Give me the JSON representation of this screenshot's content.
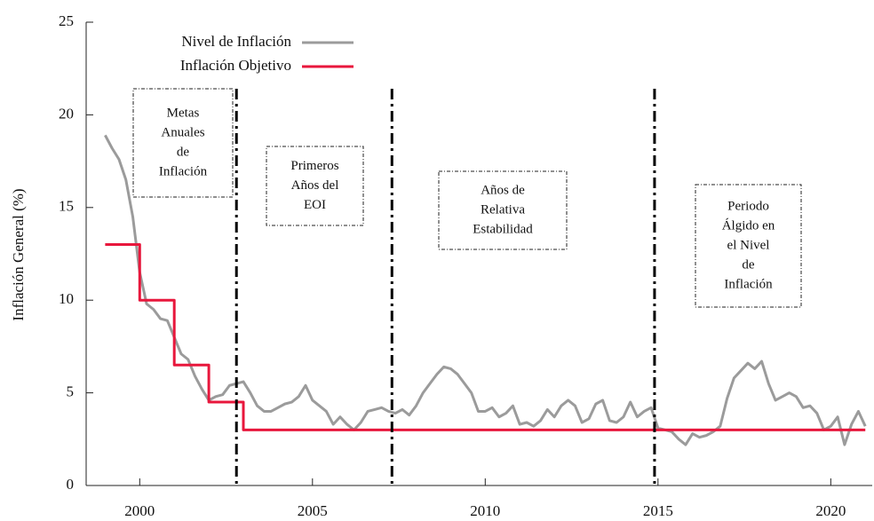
{
  "chart_data": {
    "type": "line",
    "y_label": "Inflación General (%)",
    "xlim": [
      1998.45,
      2021.2
    ],
    "ylim": [
      0,
      25
    ],
    "xticks": [
      2000,
      2005,
      2010,
      2015,
      2020
    ],
    "yticks": [
      0,
      5,
      10,
      15,
      20,
      25
    ],
    "legend": "top-left",
    "series": [
      {
        "name": "Nivel de Inflación",
        "color": "#9b9b9b",
        "x": [
          1999.0,
          1999.2,
          1999.4,
          1999.6,
          1999.8,
          2000.0,
          2000.2,
          2000.4,
          2000.6,
          2000.8,
          2001.0,
          2001.2,
          2001.4,
          2001.6,
          2001.8,
          2002.0,
          2002.2,
          2002.4,
          2002.6,
          2002.8,
          2003.0,
          2003.2,
          2003.4,
          2003.6,
          2003.8,
          2004.0,
          2004.2,
          2004.4,
          2004.6,
          2004.8,
          2005.0,
          2005.2,
          2005.4,
          2005.6,
          2005.8,
          2006.0,
          2006.2,
          2006.4,
          2006.6,
          2006.8,
          2007.0,
          2007.2,
          2007.4,
          2007.6,
          2007.8,
          2008.0,
          2008.2,
          2008.4,
          2008.6,
          2008.8,
          2009.0,
          2009.2,
          2009.4,
          2009.6,
          2009.8,
          2010.0,
          2010.2,
          2010.4,
          2010.6,
          2010.8,
          2011.0,
          2011.2,
          2011.4,
          2011.6,
          2011.8,
          2012.0,
          2012.2,
          2012.4,
          2012.6,
          2012.8,
          2013.0,
          2013.2,
          2013.4,
          2013.6,
          2013.8,
          2014.0,
          2014.2,
          2014.4,
          2014.6,
          2014.8,
          2015.0,
          2015.2,
          2015.4,
          2015.6,
          2015.8,
          2016.0,
          2016.2,
          2016.4,
          2016.6,
          2016.8,
          2017.0,
          2017.2,
          2017.4,
          2017.6,
          2017.8,
          2018.0,
          2018.2,
          2018.4,
          2018.6,
          2018.8,
          2019.0,
          2019.2,
          2019.4,
          2019.6,
          2019.8,
          2020.0,
          2020.2,
          2020.4,
          2020.6,
          2020.8,
          2021.0
        ],
        "values": [
          18.9,
          18.2,
          17.6,
          16.5,
          14.5,
          11.5,
          9.8,
          9.5,
          9.0,
          8.9,
          8.0,
          7.1,
          6.8,
          5.9,
          5.2,
          4.6,
          4.8,
          4.9,
          5.4,
          5.5,
          5.6,
          5.0,
          4.3,
          4.0,
          4.0,
          4.2,
          4.4,
          4.5,
          4.8,
          5.4,
          4.6,
          4.3,
          4.0,
          3.3,
          3.7,
          3.3,
          3.0,
          3.4,
          4.0,
          4.1,
          4.2,
          4.0,
          3.9,
          4.1,
          3.8,
          4.3,
          5.0,
          5.5,
          6.0,
          6.4,
          6.3,
          6.0,
          5.5,
          5.0,
          4.0,
          4.0,
          4.2,
          3.7,
          3.9,
          4.3,
          3.3,
          3.4,
          3.2,
          3.5,
          4.1,
          3.7,
          4.3,
          4.6,
          4.3,
          3.4,
          3.6,
          4.4,
          4.6,
          3.5,
          3.4,
          3.7,
          4.5,
          3.7,
          4.0,
          4.2,
          3.1,
          3.0,
          2.9,
          2.5,
          2.2,
          2.8,
          2.6,
          2.7,
          2.9,
          3.2,
          4.7,
          5.8,
          6.2,
          6.6,
          6.3,
          6.7,
          5.5,
          4.6,
          4.8,
          5.0,
          4.8,
          4.2,
          4.3,
          3.9,
          3.0,
          3.2,
          3.7,
          2.2,
          3.3,
          4.0,
          3.2
        ]
      },
      {
        "name": "Inflación Objetivo",
        "color": "#e8173c",
        "x": [
          1999.0,
          2000.0,
          2000.0,
          2001.0,
          2001.0,
          2002.0,
          2002.0,
          2003.0,
          2003.0,
          2021.0
        ],
        "values": [
          13,
          13,
          10,
          10,
          6.5,
          6.5,
          4.5,
          4.5,
          3,
          3
        ]
      }
    ],
    "vlines": [
      2002.8,
      2007.3,
      2014.9
    ],
    "annotations": [
      [
        "Metas",
        "Anuales",
        "de",
        "Inflación"
      ],
      [
        "Primeros",
        "Años del",
        "EOI"
      ],
      [
        "Años de",
        "Relativa",
        "Estabilidad"
      ],
      [
        "Periodo",
        "Álgido en",
        "el Nivel",
        "de",
        "Inflación"
      ]
    ]
  }
}
